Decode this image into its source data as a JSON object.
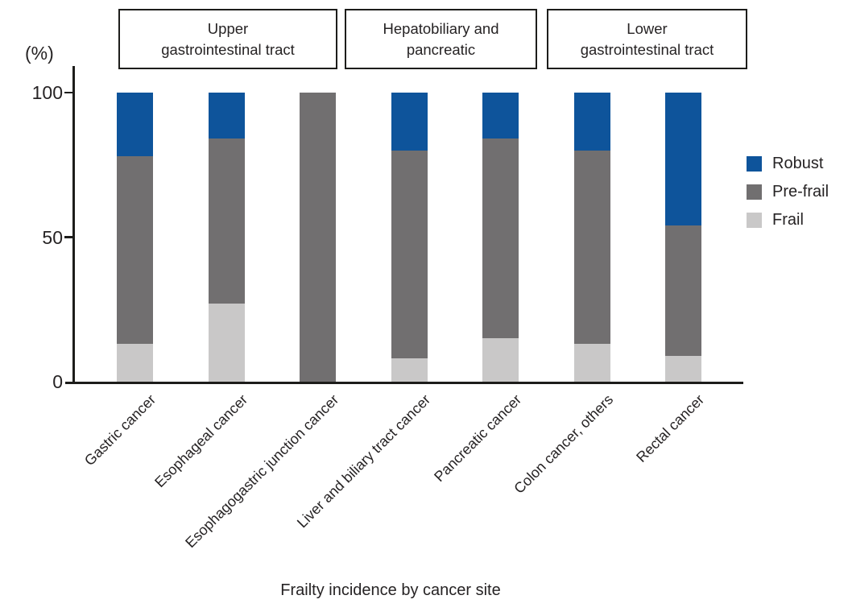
{
  "colors": {
    "robust": "#0e549b",
    "prefrail": "#716f70",
    "frail": "#c9c8c8",
    "axis": "#1d1d1b",
    "text": "#262324"
  },
  "y_axis": {
    "unit_label": "(%)",
    "ticks": [
      100,
      50,
      0
    ]
  },
  "legend": {
    "entries": [
      {
        "label": "Robust",
        "color": "#0e549b"
      },
      {
        "label": "Pre-frail",
        "color": "#716f70"
      },
      {
        "label": "Frail",
        "color": "#c9c8c8"
      }
    ]
  },
  "chart_data": {
    "type": "bar",
    "stacked": true,
    "orientation": "vertical",
    "title": "",
    "xlabel": "Frailty incidence by cancer site",
    "ylabel": "(%)",
    "ylim": [
      0,
      100
    ],
    "yticks": [
      0,
      50,
      100
    ],
    "grid": false,
    "legend_position": "right",
    "categories": [
      "Gastric cancer",
      "Esophageal cancer",
      "Esophagogastric junction cancer",
      "Liver and biliary tract cancer",
      "Pancreatic cancer",
      "Colon cancer, others",
      "Rectal cancer"
    ],
    "series": [
      {
        "name": "Robust",
        "color": "#0e549b",
        "values": [
          22,
          16,
          0,
          20,
          16,
          20,
          46
        ]
      },
      {
        "name": "Pre-frail",
        "color": "#716f70",
        "values": [
          65,
          57,
          100,
          72,
          69,
          67,
          45
        ]
      },
      {
        "name": "Frail",
        "color": "#c9c8c8",
        "values": [
          13,
          27,
          0,
          8,
          15,
          13,
          9
        ]
      }
    ],
    "groups": [
      {
        "label": "Upper\ngastrointestinal tract",
        "categories_span": [
          0,
          2
        ]
      },
      {
        "label": "Hepatobiliary and\npancreatic",
        "categories_span": [
          3,
          4
        ]
      },
      {
        "label": "Lower\ngastrointestinal tract",
        "categories_span": [
          5,
          6
        ]
      }
    ]
  }
}
